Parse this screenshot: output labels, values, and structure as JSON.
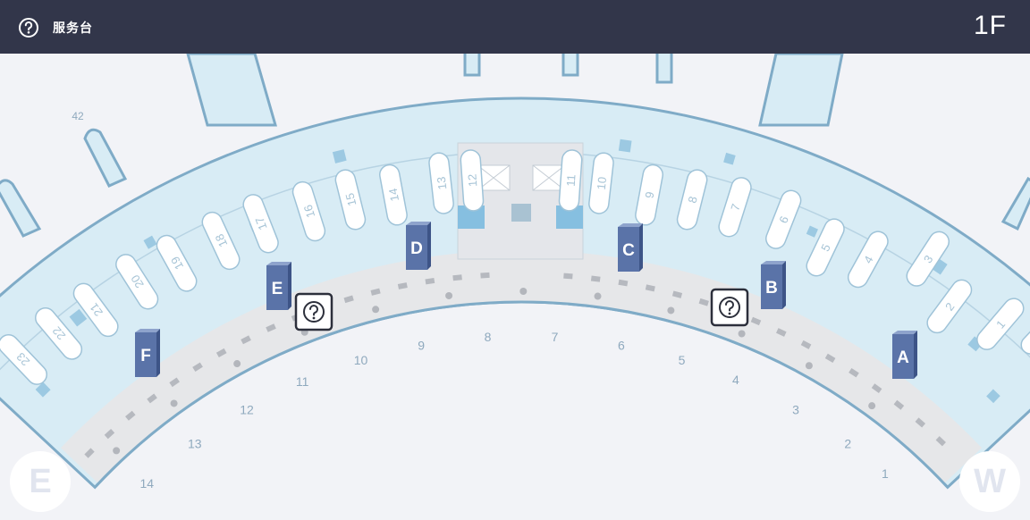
{
  "header": {
    "title": "服务台",
    "floor": "1F",
    "icon": "help-circle-icon"
  },
  "colors": {
    "header_bg": "#32364a",
    "terminal_fill": "#d8ecf5",
    "terminal_stroke": "#7fabc7",
    "concourse_fill": "#e6e7e9",
    "counter_fill": "#5a73a8",
    "gate_number": "#8fa9be"
  },
  "counters": [
    {
      "label": "A"
    },
    {
      "label": "B"
    },
    {
      "label": "C"
    },
    {
      "label": "D"
    },
    {
      "label": "E"
    },
    {
      "label": "F"
    }
  ],
  "gates": [
    "1",
    "2",
    "3",
    "4",
    "5",
    "6",
    "7",
    "8",
    "9",
    "10",
    "11",
    "12",
    "13",
    "14"
  ],
  "remote_stands": [
    "42"
  ],
  "islands": [
    "1",
    "2",
    "3",
    "4",
    "5",
    "6",
    "7",
    "8",
    "9",
    "10",
    "11",
    "12",
    "13",
    "14",
    "15",
    "16",
    "17",
    "18",
    "19",
    "20",
    "21",
    "22",
    "23"
  ],
  "service_desk_markers": [
    "help-desk-marker-east",
    "help-desk-marker-west"
  ],
  "compass": {
    "left": "E",
    "right": "W"
  }
}
